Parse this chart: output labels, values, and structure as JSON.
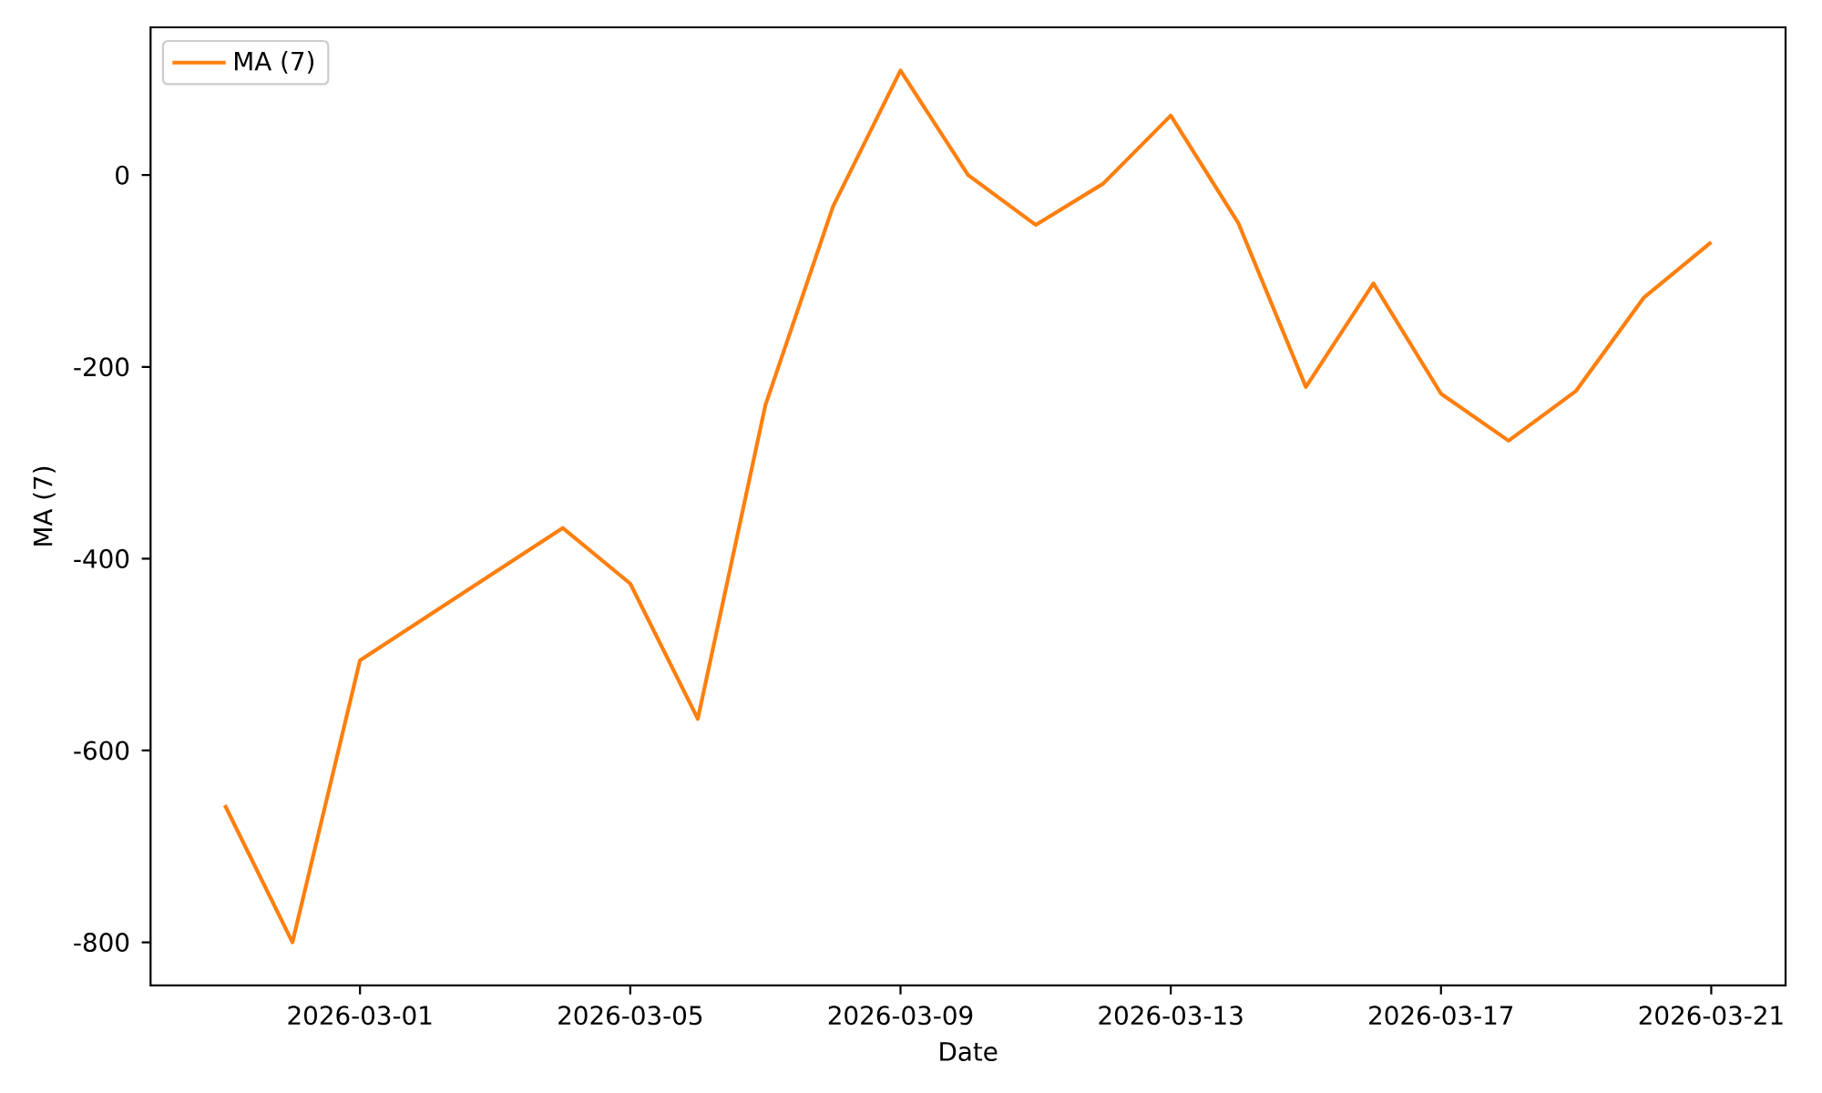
{
  "chart_data": {
    "type": "line",
    "xlabel": "Date",
    "ylabel": "MA (7)",
    "x": [
      "2026-02-27",
      "2026-02-28",
      "2026-03-01",
      "2026-03-04",
      "2026-03-05",
      "2026-03-06",
      "2026-03-07",
      "2026-03-08",
      "2026-03-09",
      "2026-03-10",
      "2026-03-11",
      "2026-03-12",
      "2026-03-13",
      "2026-03-14",
      "2026-03-15",
      "2026-03-16",
      "2026-03-17",
      "2026-03-18",
      "2026-03-19",
      "2026-03-20",
      "2026-03-21"
    ],
    "series": [
      {
        "name": "MA (7)",
        "color": "#ff7f0e",
        "values": [
          -657,
          -800,
          -506,
          -368,
          -426,
          -567,
          -240,
          -33,
          109,
          0,
          -52,
          -9,
          62,
          -50,
          -221,
          -113,
          -228,
          -277,
          -225,
          -128,
          -70
        ]
      }
    ],
    "xlim": [
      "2026-02-25T21:36",
      "2026-03-22T02:24"
    ],
    "ylim": [
      -845,
      154
    ],
    "xticks": [
      "2026-03-01",
      "2026-03-05",
      "2026-03-09",
      "2026-03-13",
      "2026-03-17",
      "2026-03-21"
    ],
    "yticks": [
      -800,
      -600,
      -400,
      -200,
      0
    ],
    "legend": "top left"
  }
}
